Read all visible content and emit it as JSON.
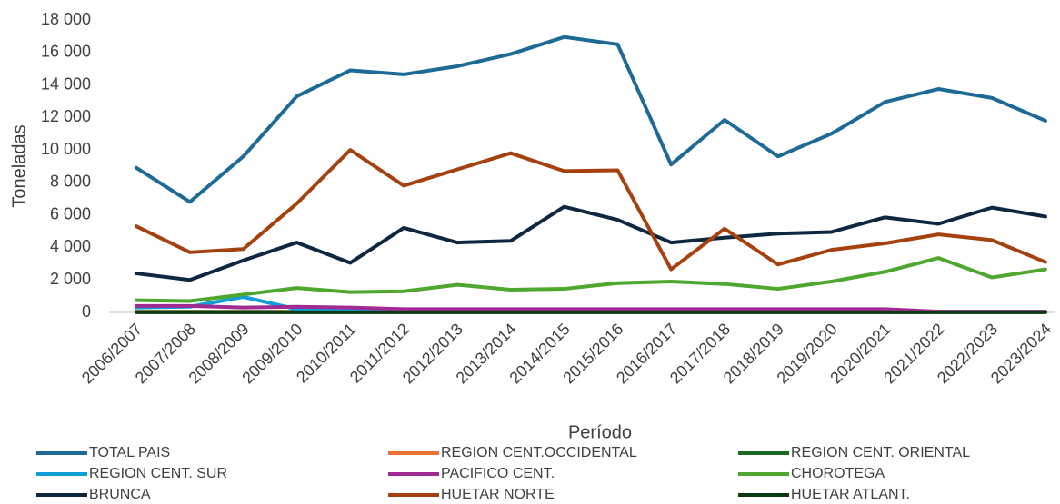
{
  "chart_data": {
    "type": "line",
    "x_label": "Período",
    "y_label": "Toneladas",
    "categories": [
      "2006/2007",
      "2007/2008",
      "2008/2009",
      "2009/2010",
      "2010/2011",
      "2011/2012",
      "2012/2013",
      "2013/2014",
      "2014/2015",
      "2015/2016",
      "2016/2017",
      "2017/2018",
      "2018/2019",
      "2019/2020",
      "2020/2021",
      "2021/2022",
      "2022/2023",
      "2023/2024"
    ],
    "ylim": [
      0,
      18000
    ],
    "yticks": [
      0,
      {
        "value": 2000,
        "label": "2 000"
      },
      {
        "value": 4000,
        "label": "4 000"
      },
      {
        "value": 6000,
        "label": "6 000"
      },
      {
        "value": 8000,
        "label": "8 000"
      },
      {
        "value": 10000,
        "label": "10 000"
      },
      {
        "value": 12000,
        "label": "12 000"
      },
      {
        "value": 14000,
        "label": "14 000"
      },
      {
        "value": 16000,
        "label": "16 000"
      },
      {
        "value": 18000,
        "label": "18 000"
      }
    ],
    "grid": false,
    "series": [
      {
        "name": "TOTAL PAIS",
        "color": "#1d6a96",
        "values": [
          8900,
          6800,
          9600,
          13300,
          14900,
          14650,
          15150,
          15900,
          16950,
          16500,
          9100,
          11850,
          9600,
          11000,
          12950,
          13750,
          13200,
          11800
        ]
      },
      {
        "name": "REGION CENT.OCCIDENTAL",
        "color": "#e97132",
        "values": [
          50,
          50,
          50,
          50,
          50,
          50,
          50,
          50,
          50,
          50,
          50,
          50,
          50,
          50,
          50,
          20,
          20,
          20
        ]
      },
      {
        "name": "REGION CENT. ORIENTAL",
        "color": "#196b24",
        "values": [
          30,
          30,
          30,
          30,
          30,
          30,
          30,
          30,
          30,
          30,
          30,
          30,
          30,
          30,
          30,
          20,
          20,
          20
        ]
      },
      {
        "name": "REGION CENT. SUR",
        "color": "#0f9ed5",
        "values": [
          300,
          350,
          950,
          200,
          150,
          100,
          100,
          100,
          100,
          100,
          100,
          100,
          100,
          100,
          100,
          50,
          50,
          50
        ]
      },
      {
        "name": "PACIFICO CENT.",
        "color": "#a02b93",
        "values": [
          400,
          400,
          300,
          350,
          300,
          200,
          200,
          200,
          200,
          200,
          200,
          200,
          200,
          200,
          200,
          50,
          50,
          50
        ]
      },
      {
        "name": "CHOROTEGA",
        "color": "#4ea72e",
        "values": [
          750,
          700,
          1100,
          1500,
          1250,
          1300,
          1700,
          1400,
          1450,
          1800,
          1900,
          1750,
          1450,
          1900,
          2500,
          3350,
          2150,
          2650
        ]
      },
      {
        "name": "BRUNCA",
        "color": "#0e2841",
        "values": [
          2400,
          2000,
          3200,
          4300,
          3050,
          5200,
          4300,
          4400,
          6500,
          5700,
          4300,
          4600,
          4850,
          4950,
          5850,
          5450,
          6450,
          5900
        ]
      },
      {
        "name": "HUETAR NORTE",
        "color": "#a5410e",
        "values": [
          5300,
          3700,
          3900,
          6700,
          10000,
          7800,
          8800,
          9800,
          8700,
          8750,
          2650,
          5150,
          2950,
          3850,
          4250,
          4800,
          4450,
          3100
        ]
      },
      {
        "name": "HUETAR ATLANT.",
        "color": "#0b3a12",
        "values": [
          10,
          10,
          10,
          10,
          10,
          10,
          10,
          10,
          10,
          10,
          10,
          10,
          10,
          10,
          10,
          10,
          10,
          10
        ]
      }
    ]
  }
}
